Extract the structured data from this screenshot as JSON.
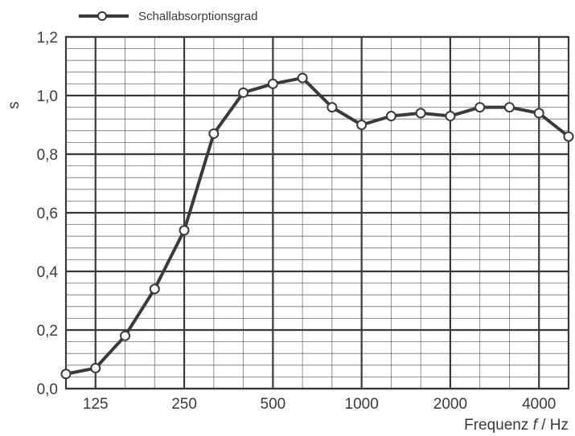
{
  "chart_data": {
    "type": "line",
    "title": "",
    "xlabel": "Frequenz f / Hz",
    "ylabel": "s",
    "x_scale": "log (third-octave bands)",
    "x": [
      100,
      125,
      160,
      200,
      250,
      315,
      400,
      500,
      630,
      800,
      1000,
      1250,
      1600,
      2000,
      2500,
      3150,
      4000,
      5000
    ],
    "x_tick_labels": [
      "125",
      "250",
      "500",
      "1000",
      "2000",
      "4000"
    ],
    "y_tick_labels": [
      "0,0",
      "0,2",
      "0,4",
      "0,6",
      "0,8",
      "1,0",
      "1,2"
    ],
    "ylim": [
      0,
      1.2
    ],
    "grid": true,
    "legend_position": "top-left",
    "series": [
      {
        "name": "Schallabsorptionsgrad",
        "values": [
          0.05,
          0.07,
          0.18,
          0.34,
          0.54,
          0.87,
          1.01,
          1.04,
          1.06,
          0.96,
          0.9,
          0.93,
          0.94,
          0.93,
          0.96,
          0.96,
          0.94,
          0.86
        ]
      }
    ],
    "colors": {
      "line": "#3a3a3a",
      "marker_fill": "#ffffff",
      "grid": "#3a3a3a"
    }
  }
}
